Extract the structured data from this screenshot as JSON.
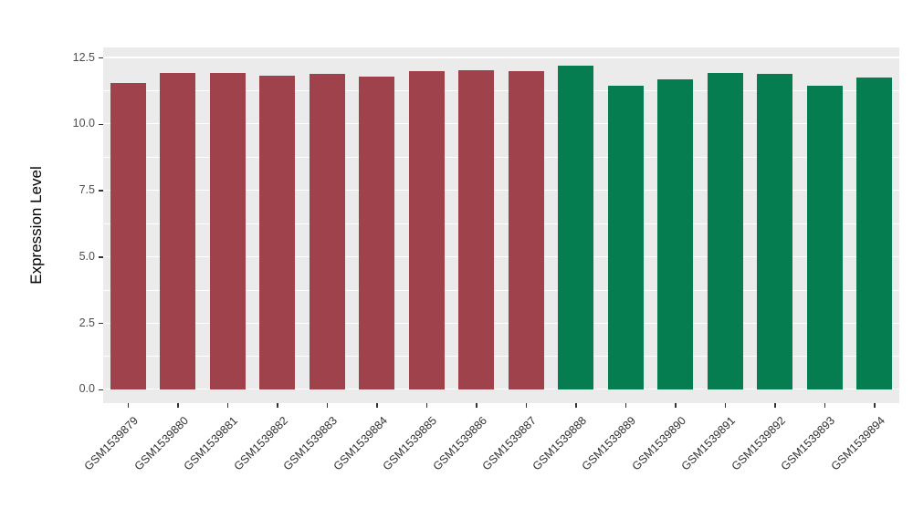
{
  "chart_data": {
    "type": "bar",
    "title": "",
    "xlabel": "",
    "ylabel": "Expression Level",
    "categories": [
      "GSM1539879",
      "GSM1539880",
      "GSM1539881",
      "GSM1539882",
      "GSM1539883",
      "GSM1539884",
      "GSM1539885",
      "GSM1539886",
      "GSM1539887",
      "GSM1539888",
      "GSM1539889",
      "GSM1539890",
      "GSM1539891",
      "GSM1539892",
      "GSM1539893",
      "GSM1539894"
    ],
    "values": [
      11.55,
      11.95,
      11.95,
      11.85,
      11.9,
      11.8,
      12.0,
      12.05,
      12.0,
      12.2,
      11.45,
      11.7,
      11.95,
      11.9,
      11.45,
      11.75
    ],
    "bar_groups": [
      "group1",
      "group1",
      "group1",
      "group1",
      "group1",
      "group1",
      "group1",
      "group1",
      "group1",
      "group2",
      "group2",
      "group2",
      "group2",
      "group2",
      "group2",
      "group2"
    ],
    "group_colors": {
      "group1": "#A0424C",
      "group2": "#067D50"
    },
    "yticks": [
      0.0,
      2.5,
      5.0,
      7.5,
      10.0,
      12.5
    ],
    "ytick_labels": [
      "0.0",
      "2.5",
      "5.0",
      "7.5",
      "10.0",
      "12.5"
    ],
    "axis": {
      "ymin": -0.5,
      "ymax": 12.9
    },
    "grid": true,
    "legend": "none",
    "panel_bg": "#EBEBEB",
    "grid_color": "#FFFFFF"
  }
}
